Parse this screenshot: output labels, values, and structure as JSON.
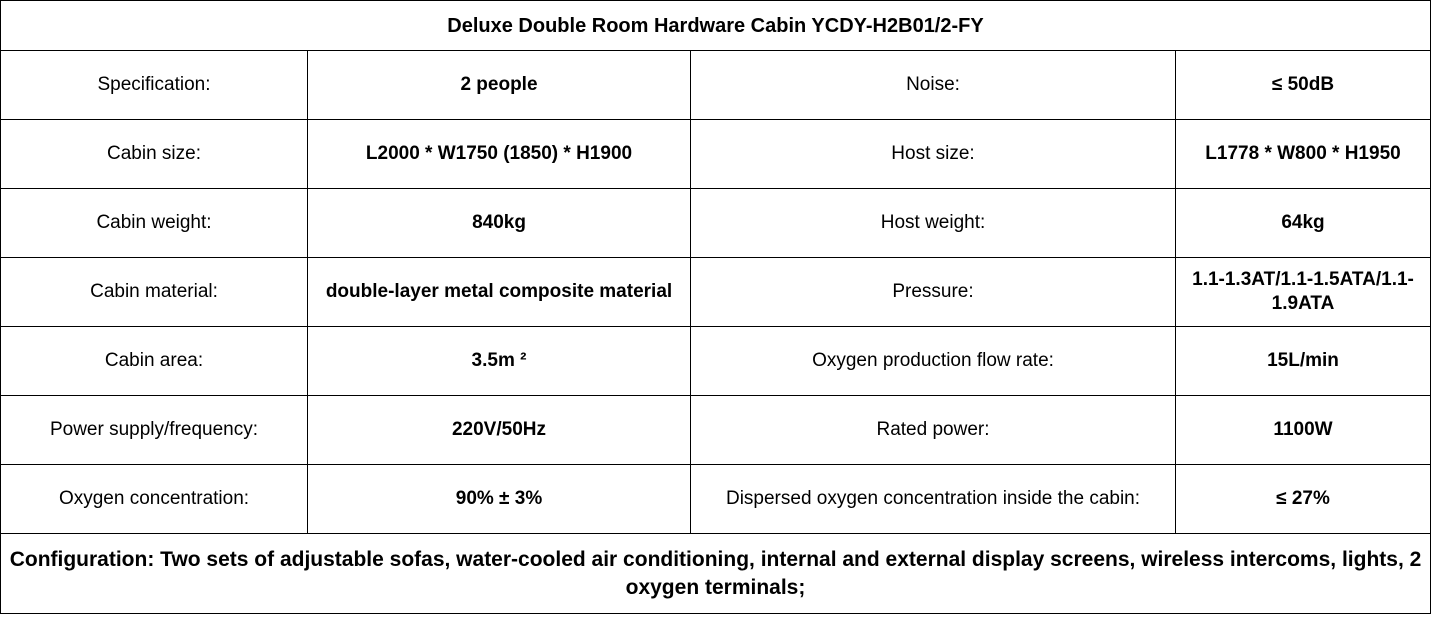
{
  "title": "Deluxe Double Room Hardware Cabin YCDY-H2B01/2-FY",
  "rows": [
    {
      "label1": "Specification:",
      "value1": "2 people",
      "label2": "Noise:",
      "value2": "≤ 50dB"
    },
    {
      "label1": "Cabin size:",
      "value1": "L2000 * W1750 (1850) * H1900",
      "label2": "Host size:",
      "value2": "L1778 * W800 * H1950"
    },
    {
      "label1": "Cabin weight:",
      "value1": "840kg",
      "label2": "Host weight:",
      "value2": "64kg"
    },
    {
      "label1": "Cabin material:",
      "value1": "double-layer metal composite material",
      "label2": "Pressure:",
      "value2": "1.1-1.3AT/1.1-1.5ATA/1.1-1.9ATA"
    },
    {
      "label1": "Cabin area:",
      "value1": "3.5m ²",
      "label2": "Oxygen production flow rate:",
      "value2": "15L/min"
    },
    {
      "label1": "Power supply/frequency:",
      "value1": "220V/50Hz",
      "label2": "Rated power:",
      "value2": "1100W"
    },
    {
      "label1": "Oxygen concentration:",
      "value1": "90% ± 3%",
      "label2": "Dispersed oxygen concentration inside the cabin:",
      "value2": "≤ 27%"
    }
  ],
  "configuration": "Configuration: Two sets of adjustable sofas, water-cooled air conditioning, internal and external display screens, wireless intercoms, lights, 2 oxygen terminals;"
}
